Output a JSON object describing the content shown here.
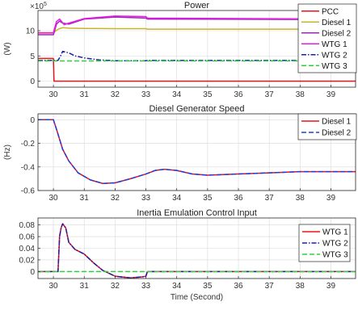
{
  "chart_data": [
    {
      "type": "line",
      "title": "Power",
      "ylabel": "(W)",
      "xlabel": "",
      "exponent_label": "×10^5",
      "xlim": [
        29.5,
        39.8
      ],
      "ylim": [
        -1.2,
        14
      ],
      "xticks": [
        30,
        31,
        32,
        33,
        34,
        35,
        36,
        37,
        38,
        39
      ],
      "yticks": [
        0,
        5,
        10
      ],
      "grid": true,
      "legend_placement": "outside-right",
      "series": [
        {
          "name": "PCC",
          "color": "#e8131b",
          "dash": "solid",
          "x": [
            29.5,
            30.0,
            30.02,
            39.8
          ],
          "y": [
            4.5,
            4.5,
            0,
            0
          ]
        },
        {
          "name": "Diesel 1",
          "color": "#c8b42a",
          "dash": "solid",
          "x": [
            29.5,
            30.0,
            30.1,
            30.2,
            30.3,
            30.5,
            31.0,
            32.0,
            33.0,
            33.05,
            39.8
          ],
          "y": [
            9.5,
            9.5,
            10.1,
            10.4,
            10.6,
            10.5,
            10.45,
            10.4,
            10.4,
            10.3,
            10.3
          ]
        },
        {
          "name": "Diesel 2",
          "color": "#9a27b6",
          "dash": "solid",
          "x": [
            29.5,
            30.0,
            30.1,
            30.2,
            30.3,
            30.5,
            31.0,
            32.0,
            33.0,
            33.05,
            39.8
          ],
          "y": [
            9.2,
            9.2,
            11.3,
            11.9,
            11.5,
            11.3,
            12.3,
            12.7,
            12.5,
            12.3,
            12.2
          ]
        },
        {
          "name": "WTG 1",
          "color": "#e61de6",
          "dash": "solid",
          "x": [
            29.5,
            30.0,
            30.1,
            30.2,
            30.35,
            30.5,
            31.0,
            32.0,
            33.0,
            33.05,
            39.8
          ],
          "y": [
            9.6,
            9.6,
            11.8,
            12.3,
            11.2,
            11.5,
            12.4,
            12.9,
            12.8,
            12.5,
            12.3
          ]
        },
        {
          "name": "WTG 2",
          "color": "#1e1ea6",
          "dash": "dashdot",
          "x": [
            29.5,
            30.15,
            30.25,
            30.3,
            30.5,
            30.7,
            31.0,
            31.5,
            32.0,
            33.0,
            33.05,
            39.8
          ],
          "y": [
            4.1,
            4.1,
            5.2,
            5.9,
            5.6,
            5.0,
            4.6,
            4.2,
            4.05,
            4.05,
            4.1,
            4.1
          ]
        },
        {
          "name": "WTG 3",
          "color": "#2ed13a",
          "dash": "dashed",
          "x": [
            29.5,
            39.8
          ],
          "y": [
            4.0,
            4.0
          ]
        }
      ]
    },
    {
      "type": "line",
      "title": "Diesel Generator Speed",
      "ylabel": "(Hz)",
      "xlabel": "",
      "xlim": [
        29.5,
        39.8
      ],
      "ylim": [
        -0.6,
        0.05
      ],
      "xticks": [
        30,
        31,
        32,
        33,
        34,
        35,
        36,
        37,
        38,
        39
      ],
      "yticks": [
        -0.6,
        -0.4,
        -0.2,
        0
      ],
      "grid": true,
      "legend_placement": "top-right",
      "series": [
        {
          "name": "Diesel 1",
          "color": "#e8131b",
          "dash": "solid",
          "x": [
            29.5,
            30.0,
            30.1,
            30.3,
            30.5,
            30.8,
            31.2,
            31.6,
            32.0,
            32.5,
            33.0,
            33.3,
            33.6,
            34.0,
            34.5,
            35.0,
            36.0,
            37.0,
            38.0,
            39.8
          ],
          "y": [
            0,
            0,
            -0.08,
            -0.25,
            -0.35,
            -0.45,
            -0.51,
            -0.54,
            -0.535,
            -0.5,
            -0.46,
            -0.43,
            -0.42,
            -0.43,
            -0.46,
            -0.47,
            -0.46,
            -0.45,
            -0.44,
            -0.44
          ]
        },
        {
          "name": "Diesel 2",
          "color": "#1e3ee0",
          "dash": "dashed",
          "x": [
            29.5,
            30.0,
            30.1,
            30.3,
            30.5,
            30.8,
            31.2,
            31.6,
            32.0,
            32.5,
            33.0,
            33.3,
            33.6,
            34.0,
            34.5,
            35.0,
            36.0,
            37.0,
            38.0,
            39.8
          ],
          "y": [
            0,
            0,
            -0.08,
            -0.25,
            -0.35,
            -0.45,
            -0.51,
            -0.54,
            -0.535,
            -0.5,
            -0.46,
            -0.43,
            -0.42,
            -0.43,
            -0.46,
            -0.47,
            -0.46,
            -0.45,
            -0.44,
            -0.44
          ]
        }
      ]
    },
    {
      "type": "line",
      "title": "Inertia Emulation Control Input",
      "ylabel": "",
      "xlabel": "Time (Second)",
      "xlim": [
        29.5,
        39.8
      ],
      "ylim": [
        -0.012,
        0.092
      ],
      "xticks": [
        30,
        31,
        32,
        33,
        34,
        35,
        36,
        37,
        38,
        39
      ],
      "yticks": [
        0,
        0.02,
        0.04,
        0.06,
        0.08
      ],
      "grid": true,
      "legend_placement": "top-right",
      "series": [
        {
          "name": "WTG 1",
          "color": "#e8131b",
          "dash": "solid",
          "x": [
            29.5,
            30.15,
            30.2,
            30.25,
            30.3,
            30.4,
            30.5,
            30.7,
            31.0,
            31.3,
            31.6,
            32.0,
            32.5,
            32.9,
            33.0,
            33.05,
            39.8
          ],
          "y": [
            0,
            0,
            0.06,
            0.075,
            0.082,
            0.075,
            0.05,
            0.038,
            0.03,
            0.015,
            0.002,
            -0.008,
            -0.011,
            -0.009,
            -0.008,
            0,
            0
          ]
        },
        {
          "name": "WTG 2",
          "color": "#1e1ea6",
          "dash": "dashdot",
          "x": [
            29.5,
            30.15,
            30.2,
            30.25,
            30.3,
            30.4,
            30.5,
            30.7,
            31.0,
            31.3,
            31.6,
            32.0,
            32.5,
            32.9,
            33.0,
            33.05,
            39.8
          ],
          "y": [
            0,
            0,
            0.06,
            0.075,
            0.082,
            0.075,
            0.05,
            0.038,
            0.03,
            0.015,
            0.002,
            -0.008,
            -0.011,
            -0.009,
            -0.008,
            0,
            0
          ]
        },
        {
          "name": "WTG 3",
          "color": "#2ed13a",
          "dash": "dashed",
          "x": [
            29.5,
            39.8
          ],
          "y": [
            0,
            0
          ]
        }
      ]
    }
  ]
}
